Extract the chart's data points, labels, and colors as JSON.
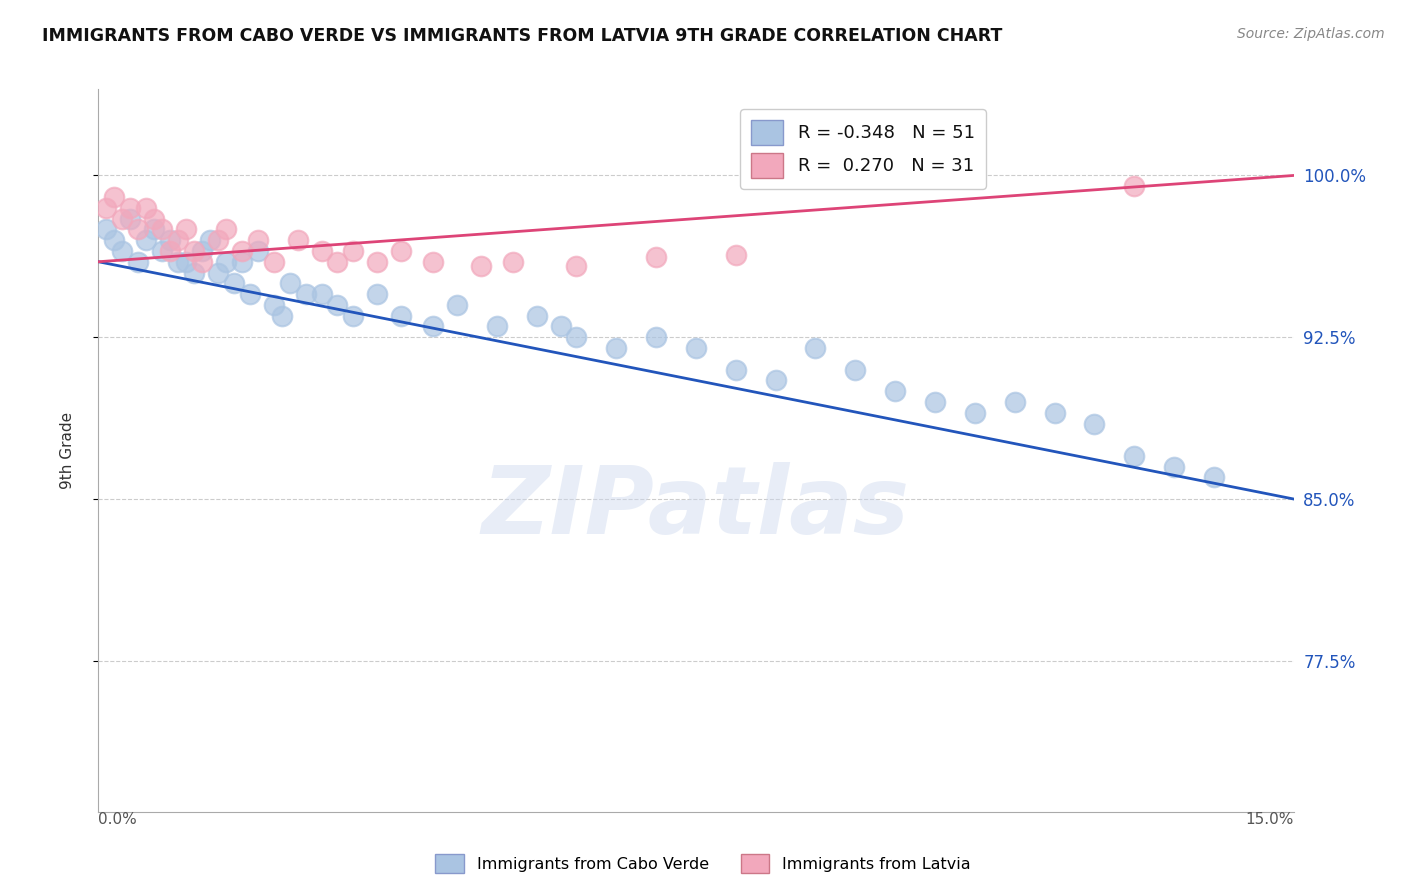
{
  "title": "IMMIGRANTS FROM CABO VERDE VS IMMIGRANTS FROM LATVIA 9TH GRADE CORRELATION CHART",
  "source": "Source: ZipAtlas.com",
  "ylabel": "9th Grade",
  "xmin": 0.0,
  "xmax": 0.15,
  "ymin": 0.705,
  "ymax": 1.04,
  "yticks": [
    0.775,
    0.85,
    0.925,
    1.0
  ],
  "ytick_labels": [
    "77.5%",
    "85.0%",
    "92.5%",
    "100.0%"
  ],
  "legend1_r": "-0.348",
  "legend1_n": "51",
  "legend2_r": "0.270",
  "legend2_n": "31",
  "cabo_verde_color": "#aac4e2",
  "latvia_color": "#f2a8bc",
  "cabo_verde_line_color": "#2255bb",
  "latvia_line_color": "#dd4477",
  "watermark_text": "ZIPatlas",
  "cabo_verde_x": [
    0.001,
    0.002,
    0.003,
    0.004,
    0.005,
    0.006,
    0.007,
    0.008,
    0.009,
    0.01,
    0.011,
    0.012,
    0.013,
    0.014,
    0.015,
    0.016,
    0.017,
    0.018,
    0.019,
    0.02,
    0.022,
    0.023,
    0.024,
    0.026,
    0.028,
    0.03,
    0.032,
    0.035,
    0.038,
    0.042,
    0.045,
    0.05,
    0.055,
    0.058,
    0.06,
    0.065,
    0.07,
    0.075,
    0.08,
    0.085,
    0.09,
    0.095,
    0.1,
    0.105,
    0.11,
    0.115,
    0.12,
    0.125,
    0.13,
    0.135,
    0.14
  ],
  "cabo_verde_y": [
    0.975,
    0.97,
    0.965,
    0.98,
    0.96,
    0.97,
    0.975,
    0.965,
    0.97,
    0.96,
    0.96,
    0.955,
    0.965,
    0.97,
    0.955,
    0.96,
    0.95,
    0.96,
    0.945,
    0.965,
    0.94,
    0.935,
    0.95,
    0.945,
    0.945,
    0.94,
    0.935,
    0.945,
    0.935,
    0.93,
    0.94,
    0.93,
    0.935,
    0.93,
    0.925,
    0.92,
    0.925,
    0.92,
    0.91,
    0.905,
    0.92,
    0.91,
    0.9,
    0.895,
    0.89,
    0.895,
    0.89,
    0.885,
    0.87,
    0.865,
    0.86
  ],
  "latvia_x": [
    0.001,
    0.002,
    0.003,
    0.004,
    0.005,
    0.006,
    0.007,
    0.008,
    0.009,
    0.01,
    0.011,
    0.012,
    0.013,
    0.015,
    0.016,
    0.018,
    0.02,
    0.022,
    0.025,
    0.028,
    0.03,
    0.032,
    0.035,
    0.038,
    0.042,
    0.048,
    0.052,
    0.06,
    0.07,
    0.08,
    0.13
  ],
  "latvia_y": [
    0.985,
    0.99,
    0.98,
    0.985,
    0.975,
    0.985,
    0.98,
    0.975,
    0.965,
    0.97,
    0.975,
    0.965,
    0.96,
    0.97,
    0.975,
    0.965,
    0.97,
    0.96,
    0.97,
    0.965,
    0.96,
    0.965,
    0.96,
    0.965,
    0.96,
    0.958,
    0.96,
    0.958,
    0.962,
    0.963,
    0.995
  ],
  "cabo_verde_line_x0": 0.0,
  "cabo_verde_line_y0": 0.96,
  "cabo_verde_line_x1": 0.15,
  "cabo_verde_line_y1": 0.85,
  "latvia_line_x0": 0.0,
  "latvia_line_y0": 0.96,
  "latvia_line_x1": 0.15,
  "latvia_line_y1": 1.0
}
